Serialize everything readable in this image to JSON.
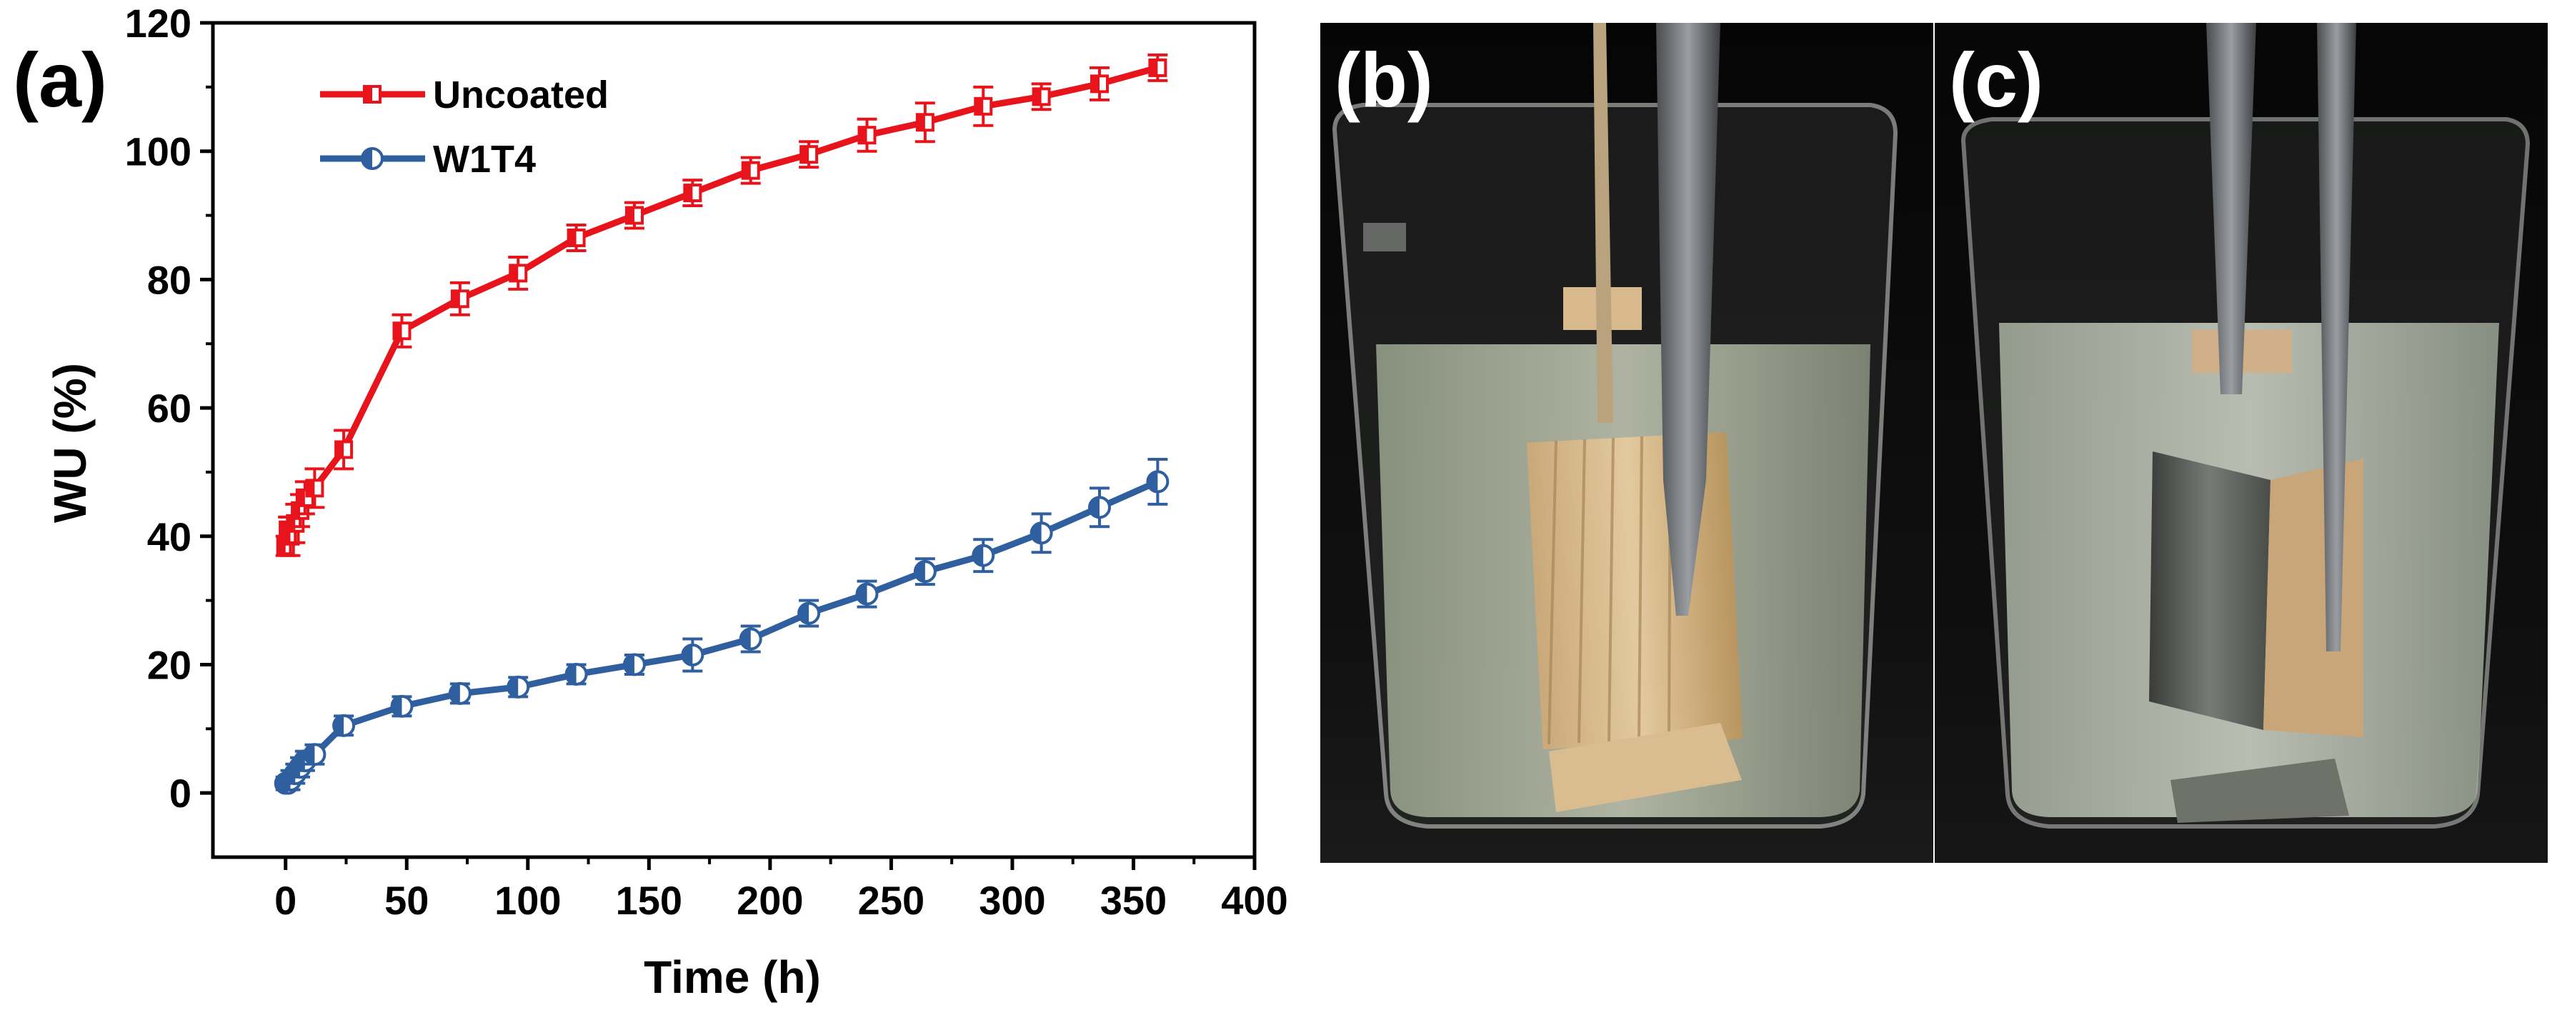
{
  "panels": {
    "a": "(a)",
    "b": "(b)",
    "c": "(c)"
  },
  "colors": {
    "uncoated": "#e8141c",
    "w1t4": "#2f5f9e"
  },
  "chart_data": {
    "type": "line",
    "xlabel": "Time (h)",
    "ylabel": "WU (%)",
    "xlim": [
      -30,
      400
    ],
    "ylim": [
      -10,
      120
    ],
    "xticks": [
      0,
      50,
      100,
      150,
      200,
      250,
      300,
      350,
      400
    ],
    "yticks": [
      0,
      20,
      40,
      60,
      80,
      100,
      120
    ],
    "legend": [
      "Uncoated",
      "W1T4"
    ],
    "legend_position": "top-left",
    "series": [
      {
        "name": "Uncoated",
        "marker": "square-half",
        "x": [
          0,
          1,
          2,
          4,
          6,
          8,
          12,
          24,
          48,
          72,
          96,
          120,
          144,
          168,
          192,
          216,
          240,
          264,
          288,
          312,
          336,
          360
        ],
        "y": [
          38.5,
          41,
          40,
          42,
          44,
          46,
          47.5,
          53.5,
          72,
          77,
          81,
          86.5,
          90,
          93.5,
          97,
          99.5,
          102.5,
          104.5,
          107,
          108.5,
          110.5,
          113
        ],
        "err": [
          1.5,
          2,
          3,
          3,
          2.5,
          2.5,
          3,
          3,
          2.5,
          2.5,
          2.5,
          2,
          2,
          2,
          2,
          2,
          2.5,
          3,
          3,
          2,
          2.5,
          2
        ]
      },
      {
        "name": "W1T4",
        "marker": "circle-half",
        "x": [
          0,
          1,
          2,
          4,
          6,
          8,
          12,
          24,
          48,
          72,
          96,
          120,
          144,
          168,
          192,
          216,
          240,
          264,
          288,
          312,
          336,
          360
        ],
        "y": [
          1.5,
          1.5,
          2,
          3,
          4,
          5,
          6,
          10.5,
          13.5,
          15.5,
          16.5,
          18.5,
          20,
          21.5,
          24,
          28,
          31,
          34.5,
          37,
          40.5,
          44.5,
          48.5
        ],
        "err": [
          1,
          1,
          1.5,
          1.5,
          1.5,
          1.5,
          1.5,
          1.5,
          1.5,
          1.5,
          1.5,
          1.5,
          1.5,
          2.5,
          2,
          2,
          2,
          2,
          2.5,
          3,
          3,
          3.5
        ]
      }
    ]
  }
}
